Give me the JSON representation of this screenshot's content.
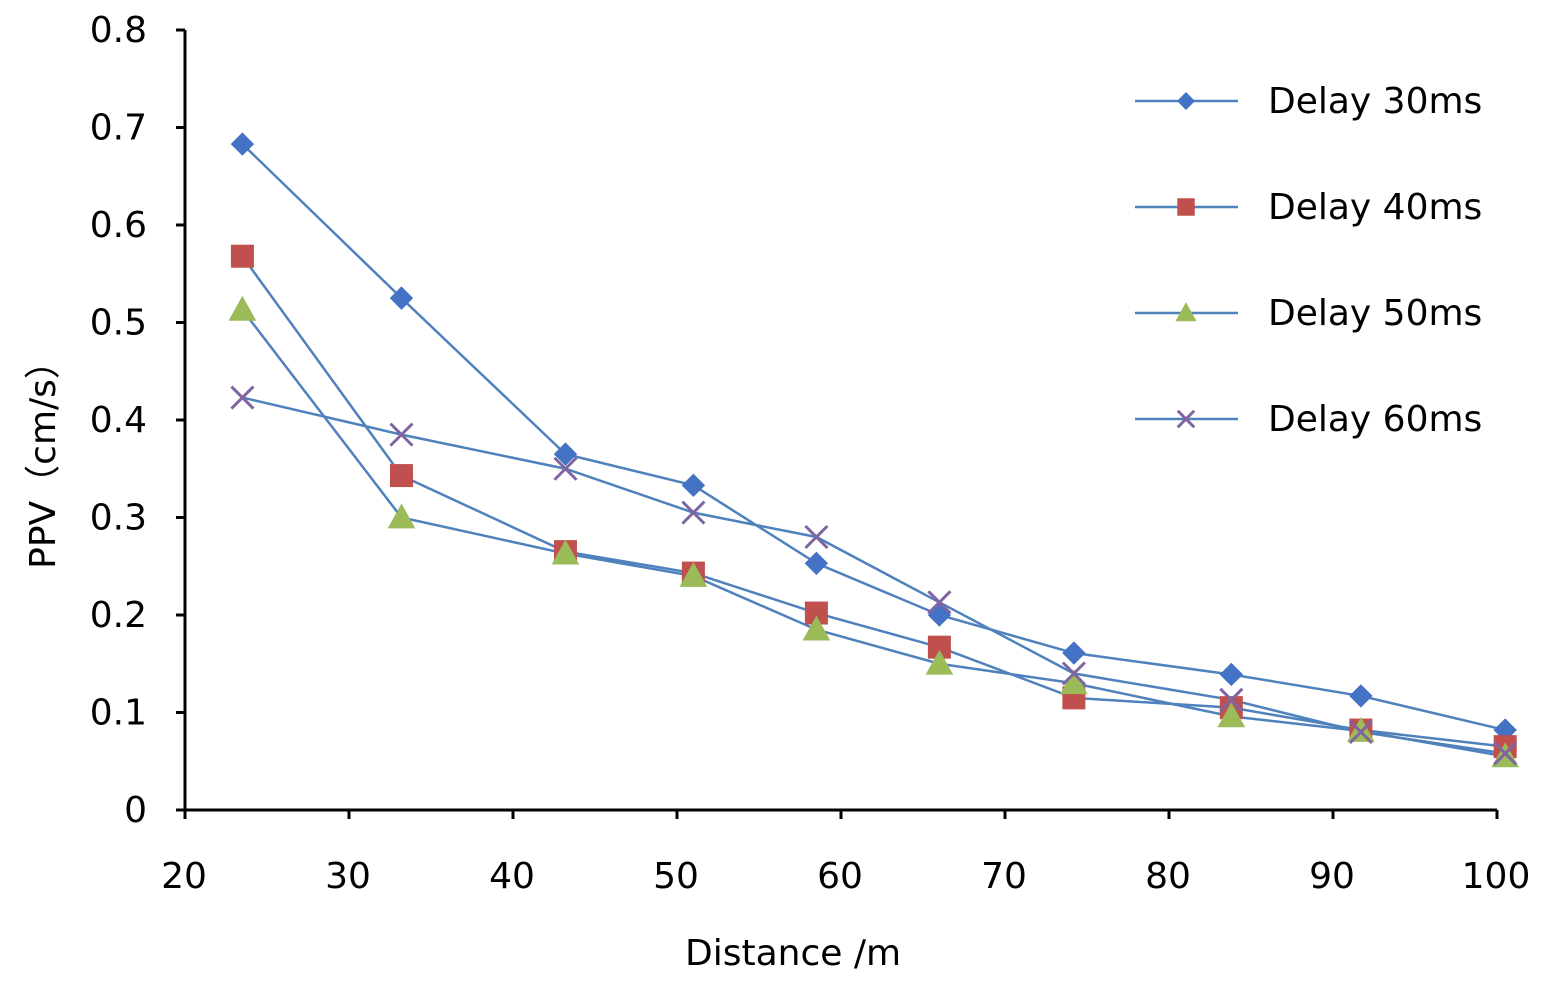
{
  "chart_data": {
    "type": "line",
    "title": "",
    "xlabel": "Distance /m",
    "ylabel": "PPV（cm/s）",
    "xlim": [
      20,
      100
    ],
    "ylim": [
      0,
      0.8
    ],
    "x_ticks": [
      "20",
      "30",
      "40",
      "50",
      "60",
      "70",
      "80",
      "90",
      "100"
    ],
    "y_ticks": [
      "0",
      "0.1",
      "0.2",
      "0.3",
      "0.4",
      "0.5",
      "0.6",
      "0.7",
      "0.8"
    ],
    "grid": false,
    "legend_position": "top-right",
    "x": [
      23.5,
      33.2,
      43.2,
      51.0,
      58.5,
      66.0,
      74.2,
      83.8,
      91.7,
      100.5
    ],
    "series": [
      {
        "name": "Delay 30ms",
        "marker": "diamond",
        "color": "#4472c4",
        "values": [
          0.683,
          0.525,
          0.365,
          0.333,
          0.253,
          0.2,
          0.161,
          0.139,
          0.117,
          0.082
        ]
      },
      {
        "name": "Delay 40ms",
        "marker": "square",
        "color": "#c0504d",
        "values": [
          0.568,
          0.343,
          0.265,
          0.243,
          0.202,
          0.167,
          0.115,
          0.105,
          0.082,
          0.065
        ]
      },
      {
        "name": "Delay 50ms",
        "marker": "triangle",
        "color": "#9bbb59",
        "values": [
          0.513,
          0.3,
          0.263,
          0.24,
          0.185,
          0.15,
          0.13,
          0.096,
          0.081,
          0.055
        ]
      },
      {
        "name": "Delay 60ms",
        "marker": "x",
        "color": "#8064a2",
        "values": [
          0.423,
          0.385,
          0.35,
          0.305,
          0.28,
          0.213,
          0.14,
          0.113,
          0.08,
          0.058
        ]
      }
    ],
    "line_color": "#4f81bd"
  }
}
